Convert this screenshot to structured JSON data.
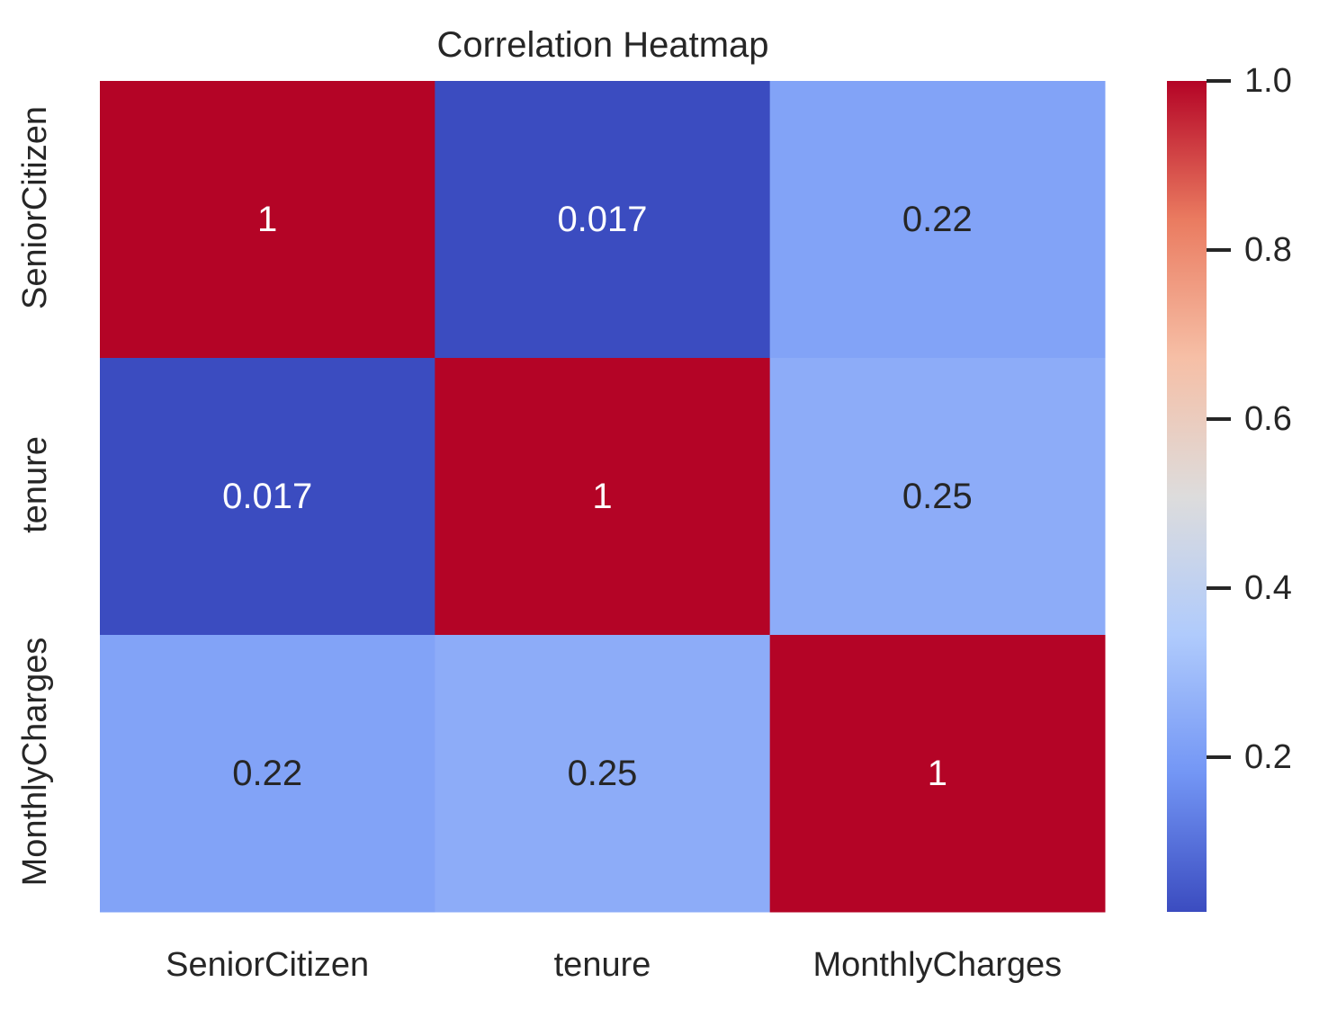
{
  "chart_data": {
    "type": "heatmap",
    "title": "Correlation Heatmap",
    "xlabel": "",
    "ylabel": "",
    "x_categories": [
      "SeniorCitizen",
      "tenure",
      "MonthlyCharges"
    ],
    "y_categories": [
      "SeniorCitizen",
      "tenure",
      "MonthlyCharges"
    ],
    "values": [
      [
        1,
        0.017,
        0.22
      ],
      [
        0.017,
        1,
        0.25
      ],
      [
        0.22,
        0.25,
        1
      ]
    ],
    "annotations": [
      [
        "1",
        "0.017",
        "0.22"
      ],
      [
        "0.017",
        "1",
        "0.25"
      ],
      [
        "0.22",
        "0.25",
        "1"
      ]
    ],
    "colormap": "coolwarm",
    "colormap_stops": [
      "#3b4cc0",
      "#7396f5",
      "#b0cbfc",
      "#dddcdc",
      "#f6bfa6",
      "#ea7b60",
      "#b40426"
    ],
    "vmin": 0.017,
    "vmax": 1,
    "colorbar": {
      "ticks": [
        0.2,
        0.4,
        0.6,
        0.8,
        1.0
      ],
      "tick_labels": [
        "0.2",
        "0.4",
        "0.6",
        "0.8",
        "1.0"
      ],
      "placement": "right"
    },
    "grid": false,
    "annotation_text_colors": {
      "light": "#ffffff",
      "dark": "#262626"
    },
    "label_color": "#262626"
  }
}
